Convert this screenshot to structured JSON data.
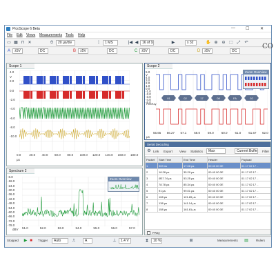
{
  "window": {
    "title": "PicoScope 6 Beta",
    "controls": [
      "—",
      "☐",
      "✕"
    ]
  },
  "menu": [
    "File",
    "Edit",
    "Views",
    "Measurements",
    "Tools",
    "Help"
  ],
  "toolbar1": {
    "timebase": "20 µs/div",
    "samples": "1 MS",
    "buffer": "16 of 16",
    "zoom": "x 32"
  },
  "toolbar2": {
    "chA_range": "±5V",
    "chA_coupling": "DC",
    "chB_range": "±5V",
    "chB_coupling": "DC",
    "chC_range": "±5V",
    "chC_coupling": "DC",
    "chD_range": "±5V",
    "chD_coupling": "DC"
  },
  "scope1": {
    "title": "Scope 1",
    "channel_marker": "A",
    "yticks": [
      "4.0",
      "V",
      "2.0",
      "0.0",
      "-2.0",
      "-4.0",
      "-6.0",
      "-8.0",
      "-10.0"
    ],
    "xticks": [
      "0.0",
      "20.0",
      "40.0",
      "60.0",
      "80.0",
      "100.0",
      "120.0",
      "140.0",
      "160.0",
      "180.0"
    ],
    "xunit": "µs"
  },
  "scope2": {
    "title": "Scope 2",
    "zoom_title": "Zoom Overview",
    "yticks": [
      "5.0",
      "V",
      "4.0",
      "3.0",
      "2.0",
      "1.0",
      "0.0",
      "-1.0",
      "-2.0",
      "-3.0",
      "-4.0",
      "-5.0"
    ],
    "flexray_label": "FlexRay",
    "xticks": [
      "55.65",
      "56.27",
      "57.1",
      "58.0",
      "59.0",
      "60.0",
      "61.0",
      "61.67",
      "62.0"
    ],
    "xunit": "µs",
    "chip_labels": [
      "01",
      "02",
      "17",
      "08",
      "FA",
      "02"
    ]
  },
  "spectrum2": {
    "title": "Spectrum 2",
    "zoom_title": "Zoom Overview",
    "yticks": [
      "-6.0",
      "-18.0",
      "-24.0",
      "-30.0",
      "-36.0",
      "-42.0",
      "-48.0",
      "-54.0",
      "-60.0",
      "-66.0",
      "-72.0",
      "-78.0"
    ],
    "yunit": "dBV",
    "xticks": [
      "51.0",
      "52.0",
      "53.0",
      "54.0",
      "55.0",
      "56.0",
      "57.0"
    ],
    "xunit": "MHz"
  },
  "serial": {
    "title": "Serial Decoding",
    "toolbar": [
      "Link",
      "Export",
      "View",
      "Statistics",
      "Max",
      "Current Buffer",
      "Filter"
    ],
    "columns": [
      "Packet",
      "Start Time",
      "End Time",
      "Header",
      "Payload"
    ],
    "rows": [
      [
        "1",
        "303 ns",
        "17.08 µs",
        "00 40 00 0E",
        "01 17 02 17 .."
      ],
      [
        "2",
        "18.28 µs",
        "35.29 µs",
        "00 40 00 0E",
        "01 17 02 17 .."
      ],
      [
        "3",
        "Ø37.74 µs",
        "53.25 µs",
        "00 40 00 0E",
        "01 17 02 17 .."
      ],
      [
        "4",
        "78.78 µs",
        "85.34 µs",
        "00 40 00 0E",
        "01 17 02 17 .."
      ],
      [
        "5",
        "91 µs",
        "99.01 µs",
        "00 40 00 0E",
        "01 17 02 17 .."
      ],
      [
        "6",
        "108 µs",
        "121.89 µs",
        "00 40 00 0E",
        "01 17 02 17 .."
      ],
      [
        "7",
        "138 µs",
        "141.14 µs",
        "00 40 00 0E",
        "01 17 02 17 .."
      ],
      [
        "8",
        "158 µs",
        "161.81 µs",
        "00 40 00 0E",
        "01 17 02 17 .."
      ]
    ],
    "footer_label": "FRay"
  },
  "statusbar": {
    "state": "Stopped",
    "trigger_label": "Trigger",
    "trigger_mode": "Auto",
    "trig_channel": "A",
    "level": "1.4 V",
    "pre": "10 %",
    "measurements": "Measurements",
    "rulers": "Rulers"
  },
  "colors": {
    "chA": "#3050c8",
    "chB": "#d62b2b",
    "chC": "#1f9a3a",
    "chD": "#c9a21e",
    "accent": "#6a8fc9"
  }
}
